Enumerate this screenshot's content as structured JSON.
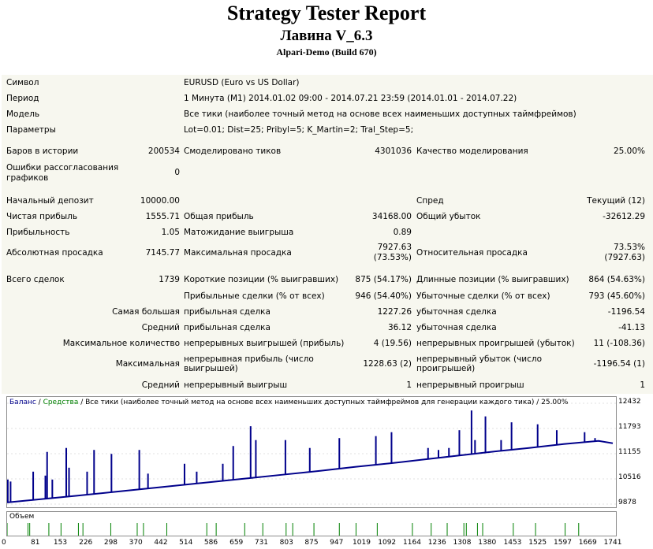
{
  "header": {
    "title": "Strategy Tester Report",
    "subtitle": "Лавина V_6.3",
    "server": "Alpari-Demo (Build 670)"
  },
  "info": [
    {
      "label": "Символ",
      "value": "EURUSD (Euro vs US Dollar)"
    },
    {
      "label": "Период",
      "value": "1 Минута (M1) 2014.01.02 09:00 - 2014.07.21 23:59 (2014.01.01 - 2014.07.22)"
    },
    {
      "label": "Модель",
      "value": "Все тики (наиболее точный метод на основе всех наименьших доступных таймфреймов)"
    },
    {
      "label": "Параметры",
      "value": "Lot=0.01; Dist=25; Pribyl=5; K_Martin=2; Tral_Step=5;"
    }
  ],
  "stats": {
    "bars_label": "Баров в истории",
    "bars_value": "200534",
    "ticks_label": "Смоделировано тиков",
    "ticks_value": "4301036",
    "quality_label": "Качество моделирования",
    "quality_value": "25.00%",
    "errors_label_1": "Ошибки рассогласования",
    "errors_label_2": "графиков",
    "errors_value": "0",
    "deposit_label": "Начальный депозит",
    "deposit_value": "10000.00",
    "spread_label": "Спред",
    "spread_value": "Текущий (12)",
    "net_label": "Чистая прибыль",
    "net_value": "1555.71",
    "gross_profit_label": "Общая прибыль",
    "gross_profit_value": "34168.00",
    "gross_loss_label": "Общий убыток",
    "gross_loss_value": "-32612.29",
    "pf_label": "Прибыльность",
    "pf_value": "1.05",
    "payoff_label": "Матожидание выигрыша",
    "payoff_value": "0.89",
    "abs_dd_label": "Абсолютная просадка",
    "abs_dd_value": "7145.77",
    "max_dd_label": "Максимальная просадка",
    "max_dd_value_1": "7927.63",
    "max_dd_value_2": "(73.53%)",
    "rel_dd_label": "Относительная просадка",
    "rel_dd_value_1": "73.53%",
    "rel_dd_value_2": "(7927.63)",
    "total_label": "Всего сделок",
    "total_value": "1739",
    "short_label": "Короткие позиции (% выигравших)",
    "short_value": "875 (54.17%)",
    "long_label": "Длинные позиции (% выигравших)",
    "long_value": "864 (54.63%)",
    "profit_trades_label": "Прибыльные сделки (% от всех)",
    "profit_trades_value": "946 (54.40%)",
    "loss_trades_label": "Убыточные сделки (% от всех)",
    "loss_trades_value": "793 (45.60%)",
    "largest_label": "Самая большая",
    "largest_pt_label": "прибыльная сделка",
    "largest_pt_value": "1227.26",
    "largest_lt_label": "убыточная сделка",
    "largest_lt_value": "-1196.54",
    "avg_label": "Средний",
    "avg_pt_label": "прибыльная сделка",
    "avg_pt_value": "36.12",
    "avg_lt_label": "убыточная сделка",
    "avg_lt_value": "-41.13",
    "maxcount_label": "Максимальное количество",
    "maxcount_win_label": "непрерывных выигрышей (прибыль)",
    "maxcount_win_value": "4 (19.56)",
    "maxcount_loss_label": "непрерывных проигрышей (убыток)",
    "maxcount_loss_value": "11 (-108.36)",
    "maximal_label": "Максимальная",
    "maximal_win_label_1": "непрерывная прибыль (число",
    "maximal_win_label_2": "выигрышей)",
    "maximal_win_value": "1228.63 (2)",
    "maximal_loss_label_1": "непрерывный убыток (число",
    "maximal_loss_label_2": "проигрышей)",
    "maximal_loss_value": "-1196.54 (1)",
    "avgcons_label": "Средний",
    "avgcons_win_label": "непрерывный выигрыш",
    "avgcons_win_value": "1",
    "avgcons_loss_label": "непрерывный проигрыш",
    "avgcons_loss_value": "1"
  },
  "chart_legend": {
    "balance": "Баланс",
    "sep1": " / ",
    "equity": "Средства",
    "sep2": " / ",
    "desc": "Все тики (наиболее точный метод на основе всех наименьших доступных таймфреймов для генерации каждого тика) / 25.00%"
  },
  "volume_label": "Объем",
  "colors": {
    "balance": "#00008b",
    "equity": "#008000",
    "report_bg": "#f7f7ef"
  },
  "chart_data": {
    "type": "line",
    "y_ticks": [
      "12432",
      "11793",
      "11155",
      "10516",
      "9878"
    ],
    "x_ticks": [
      "0",
      "81",
      "153",
      "226",
      "298",
      "370",
      "442",
      "514",
      "586",
      "659",
      "731",
      "803",
      "875",
      "947",
      "1019",
      "1092",
      "1164",
      "1236",
      "1308",
      "1380",
      "1453",
      "1525",
      "1597",
      "1669",
      "1741"
    ],
    "ylim": [
      9878,
      12432
    ],
    "xlim": [
      0,
      1741
    ],
    "series": [
      {
        "name": "Баланс",
        "x": [
          0,
          100,
          200,
          300,
          400,
          500,
          600,
          700,
          800,
          900,
          1000,
          1100,
          1200,
          1300,
          1400,
          1500,
          1600,
          1700,
          1741
        ],
        "values": [
          9920,
          10005,
          10090,
          10180,
          10270,
          10360,
          10450,
          10540,
          10630,
          10720,
          10820,
          10910,
          11010,
          11110,
          11210,
          11300,
          11400,
          11480,
          11420
        ]
      }
    ],
    "spikes": [
      {
        "x": 2,
        "top": 10500
      },
      {
        "x": 10,
        "top": 10450
      },
      {
        "x": 75,
        "top": 10700
      },
      {
        "x": 110,
        "top": 10600
      },
      {
        "x": 115,
        "top": 11200
      },
      {
        "x": 130,
        "top": 10500
      },
      {
        "x": 170,
        "top": 11300
      },
      {
        "x": 178,
        "top": 10800
      },
      {
        "x": 230,
        "top": 10700
      },
      {
        "x": 250,
        "top": 11250
      },
      {
        "x": 300,
        "top": 11150
      },
      {
        "x": 380,
        "top": 11250
      },
      {
        "x": 405,
        "top": 10650
      },
      {
        "x": 510,
        "top": 10900
      },
      {
        "x": 545,
        "top": 10700
      },
      {
        "x": 620,
        "top": 10900
      },
      {
        "x": 650,
        "top": 11350
      },
      {
        "x": 700,
        "top": 11850
      },
      {
        "x": 715,
        "top": 11500
      },
      {
        "x": 800,
        "top": 11500
      },
      {
        "x": 870,
        "top": 11300
      },
      {
        "x": 955,
        "top": 11550
      },
      {
        "x": 1060,
        "top": 11600
      },
      {
        "x": 1105,
        "top": 11700
      },
      {
        "x": 1210,
        "top": 11300
      },
      {
        "x": 1240,
        "top": 11250
      },
      {
        "x": 1270,
        "top": 11300
      },
      {
        "x": 1300,
        "top": 11750
      },
      {
        "x": 1335,
        "top": 12250
      },
      {
        "x": 1345,
        "top": 11500
      },
      {
        "x": 1375,
        "top": 12100
      },
      {
        "x": 1420,
        "top": 11500
      },
      {
        "x": 1450,
        "top": 11950
      },
      {
        "x": 1525,
        "top": 11900
      },
      {
        "x": 1580,
        "top": 11750
      },
      {
        "x": 1660,
        "top": 11700
      },
      {
        "x": 1690,
        "top": 11550
      }
    ],
    "volume_bars": [
      0,
      60,
      65,
      120,
      155,
      205,
      218,
      298,
      374,
      392,
      459,
      574,
      601,
      683,
      735,
      802,
      821,
      882,
      955,
      1003,
      1064,
      1165,
      1219,
      1265,
      1313,
      1320,
      1352,
      1367,
      1455,
      1519,
      1604,
      1643
    ]
  }
}
